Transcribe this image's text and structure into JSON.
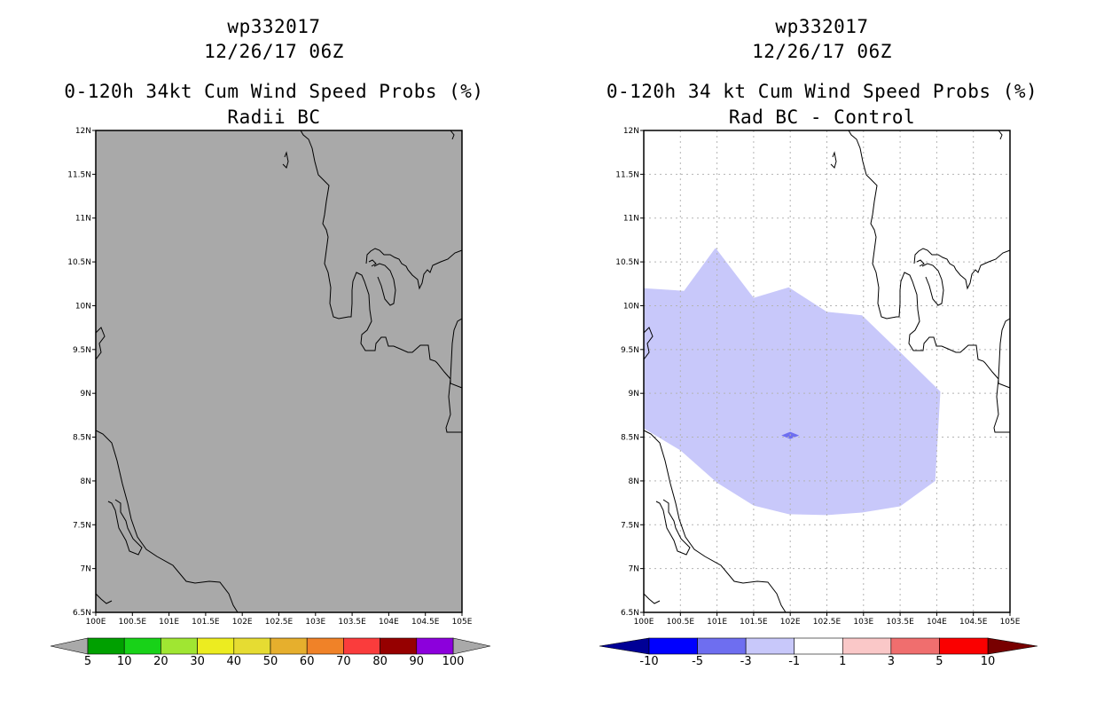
{
  "left_panel": {
    "storm_id": "wp332017",
    "datetime": "12/26/17 06Z",
    "product": "0-120h 34kt Cum Wind Speed Probs (%)",
    "subtitle": "Radii BC",
    "background": "#a9a9a9",
    "colorbar": {
      "labels": [
        "5",
        "10",
        "20",
        "30",
        "40",
        "50",
        "60",
        "70",
        "80",
        "90",
        "100"
      ],
      "colors": [
        "#00a000",
        "#18d218",
        "#a0e632",
        "#ecec20",
        "#e6dc32",
        "#e6af2d",
        "#f08228",
        "#fa3c3c",
        "#960000",
        "#8c00dc"
      ],
      "end_color": "#a9a9a9"
    }
  },
  "right_panel": {
    "storm_id": "wp332017",
    "datetime": "12/26/17 06Z",
    "product": "0-120h 34 kt Cum Wind Speed Probs (%)",
    "subtitle": "Rad BC - Control",
    "background": "#ffffff",
    "colorbar": {
      "labels": [
        "-10",
        "-5",
        "-3",
        "-1",
        "1",
        "3",
        "5",
        "10"
      ],
      "colors": [
        "#0000ff",
        "#6e6ef0",
        "#c8c8fa",
        "#ffffff",
        "#fac8c8",
        "#f06e6e",
        "#fa0000"
      ],
      "end_low": "#000096",
      "end_high": "#780000"
    },
    "fill_color": "#c8c8fa",
    "center_color": "#6e6ef0"
  },
  "map": {
    "lat_labels": [
      "12N",
      "11.5N",
      "11N",
      "10.5N",
      "10N",
      "9.5N",
      "9N",
      "8.5N",
      "8N",
      "7.5N",
      "7N",
      "6.5N"
    ],
    "lon_labels": [
      "100E",
      "100.5E",
      "101E",
      "101.5E",
      "102E",
      "102.5E",
      "103E",
      "103.5E",
      "104E",
      "104.5E",
      "105E"
    ]
  },
  "chart_data": {
    "type": "heatmap",
    "lon_range": [
      100,
      105
    ],
    "lat_range": [
      6.5,
      12
    ],
    "difference_region": {
      "value_bin": "-3 to -1",
      "outline_lonlat": [
        [
          100,
          10.2
        ],
        [
          100.55,
          10.17
        ],
        [
          100.98,
          10.66
        ],
        [
          101.5,
          10.09
        ],
        [
          101.98,
          10.21
        ],
        [
          102.5,
          9.93
        ],
        [
          102.98,
          9.89
        ],
        [
          103.5,
          9.47
        ],
        [
          104.05,
          9.02
        ],
        [
          103.98,
          8.0
        ],
        [
          103.5,
          7.71
        ],
        [
          102.98,
          7.64
        ],
        [
          102.5,
          7.61
        ],
        [
          101.98,
          7.62
        ],
        [
          101.5,
          7.72
        ],
        [
          101.0,
          7.98
        ],
        [
          100.5,
          8.35
        ],
        [
          100,
          8.6
        ]
      ]
    },
    "center_region": {
      "value_bin": "-5 to -3",
      "lon": 102.0,
      "lat": 8.52
    }
  }
}
